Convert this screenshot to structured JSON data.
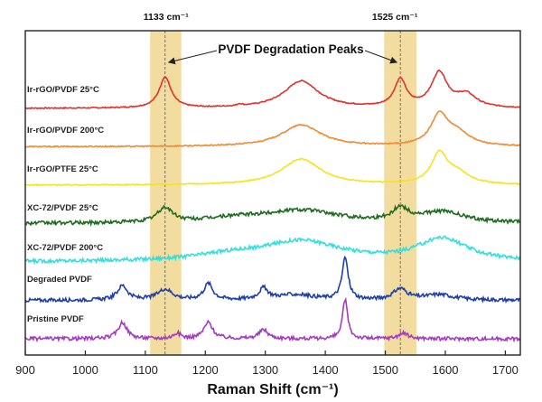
{
  "chart_data": {
    "type": "line",
    "title": "",
    "xlabel": "Raman Shift (cm⁻¹)",
    "ylabel": "",
    "xlim": [
      900,
      1725
    ],
    "xticks": [
      900,
      1000,
      1100,
      1200,
      1300,
      1400,
      1500,
      1600,
      1700
    ],
    "annotation": "PVDF Degradation Peaks",
    "highlight_bands": [
      {
        "label": "1133 cm⁻¹",
        "center": 1133,
        "range": [
          1108,
          1160
        ],
        "color": "#f2dca0"
      },
      {
        "label": "1525 cm⁻¹",
        "center": 1525,
        "range": [
          1498,
          1552
        ],
        "color": "#f2dca0"
      }
    ],
    "series": [
      {
        "name": "Ir-rGO/PVDF 25°C",
        "color": "#e0312b",
        "offset": 6,
        "peaks": [
          [
            1133,
            12,
            0.85
          ],
          [
            1360,
            35,
            0.75
          ],
          [
            1525,
            12,
            0.75
          ],
          [
            1590,
            16,
            0.95
          ],
          [
            1635,
            20,
            0.35
          ],
          [
            1257,
            5,
            0.05
          ]
        ]
      },
      {
        "name": "Ir-rGO/PVDF 200°C",
        "color": "#f08a33",
        "offset": 5,
        "peaks": [
          [
            1360,
            40,
            0.6
          ],
          [
            1590,
            17,
            0.82
          ],
          [
            1620,
            25,
            0.35
          ]
        ]
      },
      {
        "name": "Ir-rGO/PTFE 25°C",
        "color": "#f5e321",
        "offset": 4,
        "peaks": [
          [
            1360,
            40,
            0.72
          ],
          [
            1590,
            16,
            0.82
          ],
          [
            1620,
            25,
            0.3
          ]
        ]
      },
      {
        "name": "XC-72/PVDF 25°C",
        "color": "#1f6b1f",
        "offset": 3,
        "peaks": [
          [
            1133,
            15,
            0.4
          ],
          [
            1360,
            75,
            0.35
          ],
          [
            1525,
            15,
            0.35
          ],
          [
            1595,
            45,
            0.3
          ],
          [
            1250,
            60,
            0.12
          ]
        ]
      },
      {
        "name": "XC-72/PVDF 200°C",
        "color": "#33dede",
        "offset": 2,
        "peaks": [
          [
            1360,
            80,
            0.55
          ],
          [
            1595,
            50,
            0.62
          ],
          [
            1240,
            70,
            0.15
          ]
        ]
      },
      {
        "name": "Degraded PVDF",
        "color": "#1f3fa6",
        "offset": 1,
        "peaks": [
          [
            1062,
            10,
            0.4
          ],
          [
            1133,
            15,
            0.3
          ],
          [
            1205,
            9,
            0.45
          ],
          [
            1297,
            9,
            0.3
          ],
          [
            1433,
            6,
            1.15
          ],
          [
            1525,
            14,
            0.3
          ],
          [
            1590,
            30,
            0.15
          ],
          [
            1350,
            40,
            0.15
          ]
        ]
      },
      {
        "name": "Pristine PVDF",
        "color": "#a53bbf",
        "offset": 0,
        "peaks": [
          [
            1062,
            9,
            0.45
          ],
          [
            1153,
            7,
            0.15
          ],
          [
            1205,
            9,
            0.45
          ],
          [
            1297,
            9,
            0.25
          ],
          [
            1433,
            5,
            1.1
          ],
          [
            1530,
            10,
            0.15
          ]
        ]
      }
    ]
  }
}
